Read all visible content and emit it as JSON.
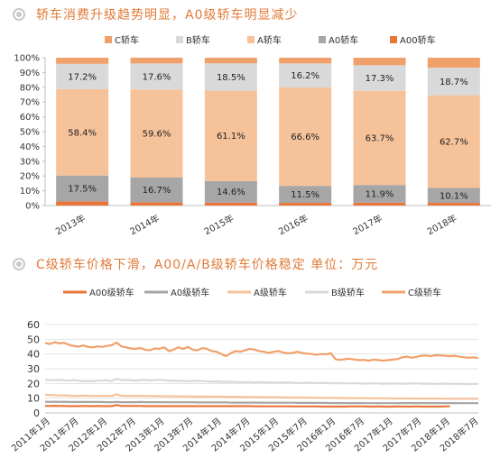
{
  "titles": {
    "chart1": "轿车消费升级趋势明显，A0级轿车明显减少",
    "chart2": "C级轿车价格下滑，A00/A/B级轿车价格稳定 单位：万元"
  },
  "chart_data": [
    {
      "type": "bar",
      "stacked": "percent",
      "categories": [
        "2013年",
        "2014年",
        "2015年",
        "2016年",
        "2017年",
        "2018年"
      ],
      "series": [
        {
          "name": "A00轿车",
          "color": "#e8763a",
          "values": [
            2.8,
            2.2,
            2.0,
            1.8,
            2.0,
            1.8
          ]
        },
        {
          "name": "A0轿车",
          "color": "#a6a6a6",
          "values": [
            17.5,
            16.7,
            14.6,
            11.5,
            11.9,
            10.1
          ]
        },
        {
          "name": "A轿车",
          "color": "#f6c29a",
          "values": [
            58.4,
            59.6,
            61.1,
            66.6,
            63.7,
            62.7
          ]
        },
        {
          "name": "B轿车",
          "color": "#d9d9d9",
          "values": [
            17.2,
            17.6,
            18.5,
            16.2,
            17.3,
            18.7
          ]
        },
        {
          "name": "C轿车",
          "color": "#f0a06a",
          "values": [
            4.1,
            3.9,
            3.8,
            3.9,
            5.1,
            6.7
          ]
        }
      ],
      "data_labels": {
        "A0轿车": [
          "17.5%",
          "16.7%",
          "14.6%",
          "11.5%",
          "11.9%",
          "10.1%"
        ],
        "A轿车": [
          "58.4%",
          "59.6%",
          "61.1%",
          "66.6%",
          "63.7%",
          "62.7%"
        ],
        "B轿车": [
          "17.2%",
          "17.6%",
          "18.5%",
          "16.2%",
          "17.3%",
          "18.7%"
        ]
      },
      "legend_order": [
        "C轿车",
        "B轿车",
        "A轿车",
        "A0轿车",
        "A00轿车"
      ],
      "y_ticks": [
        "0%",
        "10%",
        "20%",
        "30%",
        "40%",
        "50%",
        "60%",
        "70%",
        "80%",
        "90%",
        "100%"
      ],
      "ylim": [
        0,
        100
      ],
      "legend_position": "top",
      "grid": false
    },
    {
      "type": "line",
      "x_ticks": [
        "2011年1月",
        "2011年7月",
        "2012年1月",
        "2012年7月",
        "2013年1月",
        "2013年7月",
        "2014年1月",
        "2014年7月",
        "2015年1月",
        "2015年7月",
        "2016年1月",
        "2016年7月",
        "2017年1月",
        "2017年7月",
        "2018年1月",
        "2018年7月"
      ],
      "ylim": [
        0,
        60
      ],
      "y_ticks": [
        0,
        10,
        20,
        30,
        40,
        50,
        60
      ],
      "legend_position": "top",
      "grid": true,
      "series": [
        {
          "name": "A00级轿车",
          "color": "#e8763a",
          "values": [
            4.8,
            4.7,
            4.8,
            4.7,
            4.7,
            4.6,
            4.6,
            4.6,
            4.7,
            4.6,
            4.6,
            4.7,
            4.6,
            4.6,
            4.6,
            5.3,
            4.7,
            4.7,
            4.7,
            4.7,
            4.7,
            4.6,
            4.6,
            4.6,
            4.6,
            4.6,
            4.6,
            4.6,
            4.6,
            4.6,
            4.6,
            4.6,
            4.6,
            4.6,
            4.6,
            4.6,
            4.6,
            4.6,
            4.6,
            4.6,
            4.6,
            4.6,
            4.6,
            4.6,
            4.5,
            4.5,
            4.5,
            4.5,
            4.5,
            4.5,
            4.5,
            4.5,
            4.4,
            4.4,
            4.4,
            4.4,
            4.4,
            4.4,
            4.3,
            4.3,
            4.3,
            4.3,
            4.3,
            4.3,
            4.4,
            4.4,
            4.4,
            4.4,
            4.3,
            4.3,
            4.4,
            4.3,
            4.2,
            4.3,
            4.4,
            4.3,
            4.3,
            4.3,
            4.4,
            4.3,
            4.3,
            4.3,
            4.3,
            4.3,
            4.4,
            4.5
          ]
        },
        {
          "name": "A0级轿车",
          "color": "#a6a6a6",
          "values": [
            7.6,
            7.5,
            7.6,
            7.5,
            7.6,
            7.4,
            7.4,
            7.4,
            7.4,
            7.4,
            7.4,
            7.4,
            7.4,
            7.3,
            7.3,
            7.4,
            7.3,
            7.3,
            7.3,
            7.3,
            7.4,
            7.3,
            7.3,
            7.3,
            7.3,
            7.2,
            7.2,
            7.2,
            7.2,
            7.2,
            7.2,
            7.2,
            7.1,
            7.1,
            7.1,
            7.1,
            7.1,
            7.1,
            7.1,
            7.0,
            7.0,
            7.0,
            7.0,
            7.0,
            7.0,
            7.0,
            6.9,
            6.9,
            6.9,
            6.9,
            6.9,
            6.9,
            6.9,
            6.8,
            6.8,
            6.8,
            6.8,
            6.8,
            6.8,
            6.8,
            6.7,
            6.7,
            6.7,
            6.7,
            6.7,
            6.7,
            6.7,
            6.6,
            6.6,
            6.6,
            6.6,
            6.6,
            6.6,
            6.6,
            6.6,
            6.7,
            6.7,
            6.7,
            6.7,
            6.7,
            6.7,
            6.7,
            6.7,
            6.7,
            6.7,
            6.7,
            6.7,
            6.6,
            6.6,
            6.6,
            6.6,
            6.6
          ]
        },
        {
          "name": "A级轿车",
          "color": "#f6c29a",
          "values": [
            12.3,
            12.1,
            12.0,
            11.8,
            11.9,
            11.7,
            11.6,
            11.6,
            11.8,
            11.6,
            11.5,
            11.6,
            11.6,
            11.6,
            11.5,
            12.6,
            11.6,
            11.6,
            11.5,
            11.6,
            11.5,
            11.5,
            11.4,
            11.4,
            11.4,
            11.3,
            11.3,
            11.3,
            11.2,
            11.2,
            11.2,
            11.1,
            11.1,
            11.1,
            11.0,
            11.0,
            11.0,
            11.0,
            10.9,
            10.9,
            10.9,
            10.8,
            10.8,
            10.8,
            10.7,
            10.7,
            10.7,
            10.6,
            10.6,
            10.6,
            10.5,
            10.5,
            10.4,
            10.4,
            10.4,
            10.3,
            10.3,
            10.3,
            10.2,
            10.2,
            10.2,
            10.1,
            10.1,
            10.1,
            10.0,
            10.0,
            10.0,
            10.0,
            9.9,
            9.9,
            9.9,
            9.9,
            9.9,
            9.8,
            9.8,
            9.8,
            9.8,
            9.8,
            9.7,
            9.7,
            9.7,
            9.7,
            9.7,
            9.7,
            9.6,
            9.6,
            9.6,
            9.6,
            9.6,
            9.6,
            9.6,
            9.6
          ]
        },
        {
          "name": "B级轿车",
          "color": "#d9d9d9",
          "values": [
            22.5,
            22.3,
            22.2,
            22.4,
            22.1,
            21.9,
            22.3,
            21.9,
            21.5,
            21.8,
            21.4,
            21.9,
            22.0,
            22.2,
            21.7,
            23.2,
            22.3,
            22.4,
            22.1,
            22.0,
            22.3,
            22.4,
            22.1,
            22.2,
            22.4,
            22.3,
            21.8,
            22.0,
            21.7,
            21.8,
            21.5,
            21.6,
            21.8,
            21.6,
            21.4,
            21.2,
            21.5,
            21.0,
            21.2,
            21.1,
            21.0,
            20.8,
            21.0,
            20.9,
            20.7,
            20.8,
            20.9,
            20.6,
            20.7,
            20.5,
            20.6,
            20.7,
            20.5,
            20.3,
            20.4,
            20.5,
            20.4,
            20.2,
            20.3,
            20.4,
            20.2,
            20.1,
            20.2,
            20.0,
            20.1,
            20.2,
            20.0,
            19.9,
            20.0,
            20.1,
            20.0,
            19.8,
            19.9,
            20.0,
            19.9,
            19.8,
            19.9,
            20.0,
            20.1,
            19.9,
            19.8,
            19.9,
            19.7,
            19.8,
            19.9,
            19.8,
            19.7,
            19.8,
            19.7,
            19.6,
            19.7,
            19.8
          ]
        },
        {
          "name": "C级轿车",
          "color": "#f0a06a",
          "values": [
            47.5,
            46.8,
            48.0,
            47.2,
            47.5,
            46.2,
            45.5,
            45.0,
            45.8,
            44.8,
            44.5,
            45.2,
            44.8,
            45.5,
            46.0,
            47.8,
            45.2,
            44.5,
            43.8,
            43.5,
            44.0,
            43.0,
            42.5,
            43.8,
            43.5,
            44.5,
            42.0,
            43.0,
            44.5,
            43.5,
            44.8,
            43.0,
            42.5,
            44.0,
            43.5,
            42.0,
            41.5,
            40.0,
            38.5,
            40.5,
            42.0,
            41.5,
            42.5,
            43.5,
            43.0,
            42.0,
            41.5,
            40.8,
            41.5,
            42.0,
            41.0,
            40.5,
            40.8,
            41.5,
            40.8,
            40.2,
            40.0,
            39.5,
            40.0,
            39.8,
            40.5,
            36.5,
            36.0,
            36.5,
            36.8,
            36.2,
            35.8,
            36.0,
            35.5,
            36.2,
            35.8,
            35.5,
            35.8,
            36.2,
            36.5,
            37.8,
            38.2,
            37.5,
            38.0,
            38.8,
            39.0,
            38.5,
            39.2,
            39.0,
            38.8,
            38.5,
            38.8,
            38.2,
            37.8,
            37.5,
            37.8,
            37.2
          ]
        }
      ]
    }
  ]
}
